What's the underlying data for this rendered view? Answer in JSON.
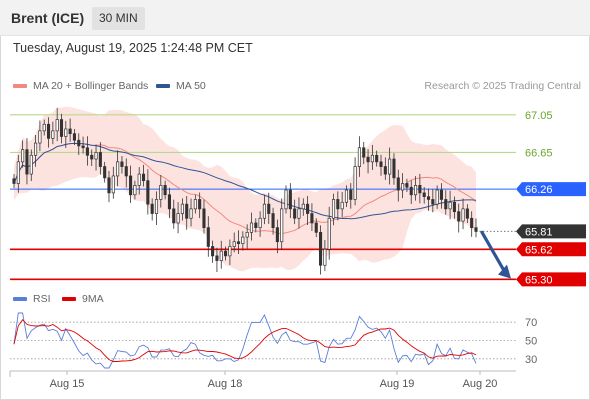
{
  "header": {
    "title": "Brent (ICE)",
    "interval": "30 MIN"
  },
  "timestamp": "Tuesday, August 19, 2025 1:24:48 PM CET",
  "legend": {
    "ma20": {
      "label": "MA 20 + Bollinger Bands",
      "color": "#f08a80"
    },
    "ma50": {
      "label": "MA 50",
      "color": "#2f5597"
    }
  },
  "credit": "Research © 2025 Trading Central",
  "rsi_legend": {
    "rsi": {
      "label": "RSI",
      "color": "#5b7ed8"
    },
    "ma9": {
      "label": "9MA",
      "color": "#e00000"
    }
  },
  "chart_data": [
    {
      "type": "candlestick",
      "ylim": [
        65.24,
        67.24
      ],
      "x_ticks": [
        "Aug 15",
        "Aug 18",
        "Aug 19",
        "Aug 20"
      ],
      "levels": [
        {
          "value": 67.05,
          "label": "67.05",
          "kind": "resistance",
          "color": "#b7d98b"
        },
        {
          "value": 66.65,
          "label": "66.65",
          "kind": "resistance",
          "color": "#b7d98b"
        },
        {
          "value": 66.26,
          "label": "66.26",
          "kind": "pivot",
          "color": "#2962ff"
        },
        {
          "value": 65.81,
          "label": "65.81",
          "kind": "last",
          "color": "#333333"
        },
        {
          "value": 65.62,
          "label": "65.62",
          "kind": "support",
          "color": "#e00000"
        },
        {
          "value": 65.3,
          "label": "65.30",
          "kind": "support",
          "color": "#e00000"
        }
      ],
      "close": [
        66.32,
        66.55,
        66.68,
        66.42,
        66.62,
        66.75,
        66.88,
        66.95,
        66.8,
        66.88,
        67.0,
        66.82,
        66.9,
        66.85,
        66.78,
        66.72,
        66.7,
        66.62,
        66.58,
        66.65,
        66.5,
        66.38,
        66.22,
        66.4,
        66.55,
        66.5,
        66.4,
        66.2,
        66.3,
        66.42,
        66.35,
        66.1,
        66.0,
        66.15,
        66.3,
        66.2,
        66.05,
        65.9,
        66.0,
        66.1,
        65.95,
        66.05,
        66.15,
        66.05,
        65.85,
        65.65,
        65.55,
        65.5,
        65.6,
        65.55,
        65.65,
        65.7,
        65.68,
        65.75,
        65.8,
        65.9,
        65.85,
        65.95,
        66.1,
        66.0,
        65.85,
        65.7,
        66.05,
        66.25,
        66.05,
        65.95,
        66.05,
        66.1,
        66.0,
        65.9,
        65.8,
        65.45,
        65.62,
        65.95,
        66.15,
        66.05,
        66.12,
        66.25,
        66.15,
        66.5,
        66.7,
        66.6,
        66.55,
        66.62,
        66.55,
        66.5,
        66.42,
        66.58,
        66.38,
        66.25,
        66.32,
        66.28,
        66.2,
        66.3,
        66.22,
        66.18,
        66.15,
        66.1,
        66.25,
        66.15,
        66.05,
        66.12,
        66.02,
        65.92,
        66.05,
        65.95,
        65.85,
        65.81
      ],
      "rsi": {
        "ylim": [
          20,
          80
        ],
        "levels": [
          70,
          50,
          30
        ],
        "level_labels": [
          "70",
          "50",
          "30"
        ]
      }
    }
  ]
}
